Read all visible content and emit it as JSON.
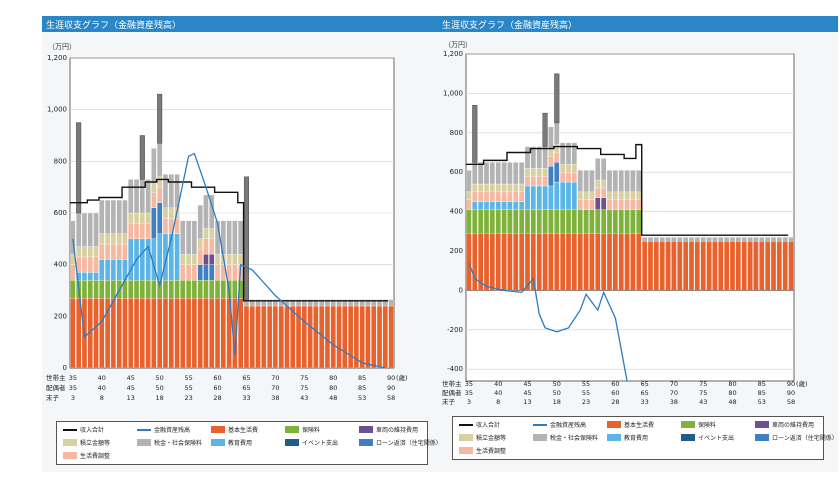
{
  "panels": [
    {
      "header": "生涯収支グラフ（金融資産残高）",
      "unit": "（万円）"
    },
    {
      "header": "生涯収支グラフ（金融資産残高）",
      "unit": "（万円）"
    }
  ],
  "row_labels": [
    "世帯主",
    "配偶者",
    "末子"
  ],
  "colors": {
    "basic": "#e8622e",
    "insurance": "#7fb23a",
    "education": "#5bb5e6",
    "event": "#1f5e8a",
    "loan": "#3f7fc2",
    "tax": "#b3b3b3",
    "living": "#f6b8a0",
    "car": "#6d5090",
    "savings": "#d8d0a0",
    "income": "#111111",
    "balance": "#2c7cc1"
  },
  "legend": [
    {
      "key": "income",
      "label": "収入合計",
      "kind": "line"
    },
    {
      "key": "balance",
      "label": "金融資産残高",
      "kind": "line"
    },
    {
      "key": "basic",
      "label": "基本生活費",
      "kind": "box"
    },
    {
      "key": "insurance",
      "label": "保険料",
      "kind": "box"
    },
    {
      "key": "car",
      "label": "車両の維持費用",
      "kind": "box"
    },
    {
      "key": "savings",
      "label": "積立金額等",
      "kind": "box"
    },
    {
      "key": "tax",
      "label": "税金・社会保険料",
      "kind": "box"
    },
    {
      "key": "education",
      "label": "教育費用",
      "kind": "box"
    },
    {
      "key": "event",
      "label": "イベント支出",
      "kind": "box"
    },
    {
      "key": "loan",
      "label": "ローン返済（住宅関係）",
      "kind": "box"
    },
    {
      "key": "living",
      "label": "生活費調整",
      "kind": "box"
    }
  ],
  "chart_data": [
    {
      "type": "bar",
      "ylim": [
        0,
        1200
      ],
      "yticks": [
        0,
        200,
        400,
        600,
        800,
        1000,
        1200
      ],
      "ytick_labels": [
        "0",
        "200",
        "400",
        "600",
        "800",
        "1,000",
        "1,200"
      ],
      "x_start": 35,
      "x_end": 90,
      "xticks": [
        35,
        40,
        45,
        50,
        55,
        60,
        65,
        70,
        75,
        80,
        85,
        90
      ],
      "x_unit": "(歳)",
      "ages": {
        "householder": [
          "35",
          "40",
          "45",
          "50",
          "55",
          "60",
          "65",
          "70",
          "75",
          "80",
          "85",
          "90"
        ],
        "spouse": [
          "35",
          "40",
          "45",
          "50",
          "55",
          "60",
          "65",
          "70",
          "75",
          "80",
          "85",
          "90"
        ],
        "youngest": [
          "3",
          "8",
          "13",
          "18",
          "23",
          "28",
          "33",
          "38",
          "43",
          "48",
          "53",
          "58"
        ]
      },
      "segments": [
        {
          "name": "basic",
          "ranges": [
            {
              "from": 35,
              "to": 64,
              "value": 270
            },
            {
              "from": 65,
              "to": 90,
              "value": 240
            }
          ]
        },
        {
          "name": "insurance",
          "ranges": [
            {
              "from": 35,
              "to": 64,
              "value": 70
            }
          ]
        },
        {
          "name": "education",
          "ranges": [
            {
              "from": 36,
              "to": 39,
              "value": 30
            },
            {
              "from": 40,
              "to": 44,
              "value": 80
            },
            {
              "from": 45,
              "to": 49,
              "value": 160
            },
            {
              "from": 50,
              "to": 53,
              "value": 180
            }
          ]
        },
        {
          "name": "loan",
          "ranges": [
            {
              "from": 49,
              "to": 50,
              "value": 120
            },
            {
              "from": 57,
              "to": 59,
              "value": 60
            }
          ]
        },
        {
          "name": "car",
          "ranges": [
            {
              "from": 58,
              "to": 59,
              "value": 40
            }
          ]
        },
        {
          "name": "living",
          "ranges": [
            {
              "from": 35,
              "to": 64,
              "value": 60
            }
          ]
        },
        {
          "name": "savings",
          "ranges": [
            {
              "from": 35,
              "to": 64,
              "value": 40
            }
          ]
        },
        {
          "name": "tax",
          "ranges": [
            {
              "from": 35,
              "to": 64,
              "value": 130
            },
            {
              "from": 65,
              "to": 90,
              "value": 25
            }
          ]
        }
      ],
      "spikes": [
        {
          "age": 36,
          "value": 950
        },
        {
          "age": 50,
          "value": 1060
        },
        {
          "age": 47,
          "value": 900
        },
        {
          "age": 65,
          "value": 740
        }
      ],
      "income": [
        [
          35,
          640
        ],
        [
          38,
          650
        ],
        [
          40,
          660
        ],
        [
          44,
          700
        ],
        [
          48,
          720
        ],
        [
          50,
          730
        ],
        [
          52,
          720
        ],
        [
          56,
          700
        ],
        [
          60,
          680
        ],
        [
          64,
          640
        ],
        [
          65,
          260
        ],
        [
          90,
          260
        ]
      ],
      "balance": [
        [
          35,
          500
        ],
        [
          37,
          120
        ],
        [
          40,
          180
        ],
        [
          43,
          300
        ],
        [
          46,
          420
        ],
        [
          48,
          470
        ],
        [
          50,
          320
        ],
        [
          52,
          500
        ],
        [
          55,
          820
        ],
        [
          56,
          830
        ],
        [
          58,
          700
        ],
        [
          60,
          560
        ],
        [
          62,
          300
        ],
        [
          63,
          50
        ],
        [
          64,
          400
        ],
        [
          66,
          380
        ],
        [
          70,
          280
        ],
        [
          75,
          180
        ],
        [
          80,
          90
        ],
        [
          85,
          20
        ],
        [
          89,
          0
        ]
      ]
    },
    {
      "type": "bar",
      "ylim": [
        -460,
        1200
      ],
      "yticks": [
        -400,
        -200,
        0,
        200,
        400,
        600,
        800,
        1000,
        1200
      ],
      "ytick_labels": [
        "-400",
        "-200",
        "0",
        "200",
        "400",
        "600",
        "800",
        "1,000",
        "1,200"
      ],
      "x_start": 35,
      "x_end": 90,
      "xticks": [
        35,
        40,
        45,
        50,
        55,
        60,
        65,
        70,
        75,
        80,
        85,
        90
      ],
      "x_unit": "(歳)",
      "ages": {
        "householder": [
          "35",
          "40",
          "45",
          "50",
          "55",
          "60",
          "65",
          "70",
          "75",
          "80",
          "85",
          "90"
        ],
        "spouse": [
          "35",
          "40",
          "45",
          "50",
          "55",
          "60",
          "65",
          "70",
          "75",
          "80",
          "85",
          "90"
        ],
        "youngest": [
          "3",
          "8",
          "13",
          "18",
          "23",
          "28",
          "33",
          "38",
          "43",
          "48",
          "53",
          "58"
        ]
      },
      "segments": [
        {
          "name": "basic",
          "ranges": [
            {
              "from": 35,
              "to": 64,
              "value": 290
            },
            {
              "from": 65,
              "to": 90,
              "value": 250
            }
          ]
        },
        {
          "name": "insurance",
          "ranges": [
            {
              "from": 35,
              "to": 64,
              "value": 120
            }
          ]
        },
        {
          "name": "education",
          "ranges": [
            {
              "from": 36,
              "to": 44,
              "value": 40
            },
            {
              "from": 45,
              "to": 49,
              "value": 120
            },
            {
              "from": 50,
              "to": 53,
              "value": 140
            }
          ]
        },
        {
          "name": "loan",
          "ranges": [
            {
              "from": 49,
              "to": 50,
              "value": 100
            }
          ]
        },
        {
          "name": "car",
          "ranges": [
            {
              "from": 57,
              "to": 58,
              "value": 60
            }
          ]
        },
        {
          "name": "living",
          "ranges": [
            {
              "from": 35,
              "to": 64,
              "value": 50
            }
          ]
        },
        {
          "name": "savings",
          "ranges": [
            {
              "from": 35,
              "to": 64,
              "value": 40
            }
          ]
        },
        {
          "name": "tax",
          "ranges": [
            {
              "from": 35,
              "to": 64,
              "value": 110
            },
            {
              "from": 65,
              "to": 90,
              "value": 20
            }
          ]
        }
      ],
      "spikes": [
        {
          "age": 36,
          "value": 940
        },
        {
          "age": 50,
          "value": 1100
        },
        {
          "age": 48,
          "value": 900
        }
      ],
      "income": [
        [
          35,
          640
        ],
        [
          38,
          660
        ],
        [
          42,
          700
        ],
        [
          46,
          720
        ],
        [
          50,
          730
        ],
        [
          54,
          720
        ],
        [
          58,
          690
        ],
        [
          62,
          670
        ],
        [
          64,
          740
        ],
        [
          65,
          280
        ],
        [
          90,
          280
        ]
      ],
      "balance": [
        [
          35,
          140
        ],
        [
          36,
          60
        ],
        [
          38,
          20
        ],
        [
          41,
          0
        ],
        [
          44,
          -10
        ],
        [
          46,
          60
        ],
        [
          47,
          -120
        ],
        [
          48,
          -190
        ],
        [
          50,
          -210
        ],
        [
          52,
          -190
        ],
        [
          54,
          -100
        ],
        [
          55,
          -20
        ],
        [
          57,
          -100
        ],
        [
          58,
          -10
        ],
        [
          60,
          -140
        ],
        [
          61,
          -300
        ],
        [
          62,
          -460
        ]
      ]
    }
  ]
}
